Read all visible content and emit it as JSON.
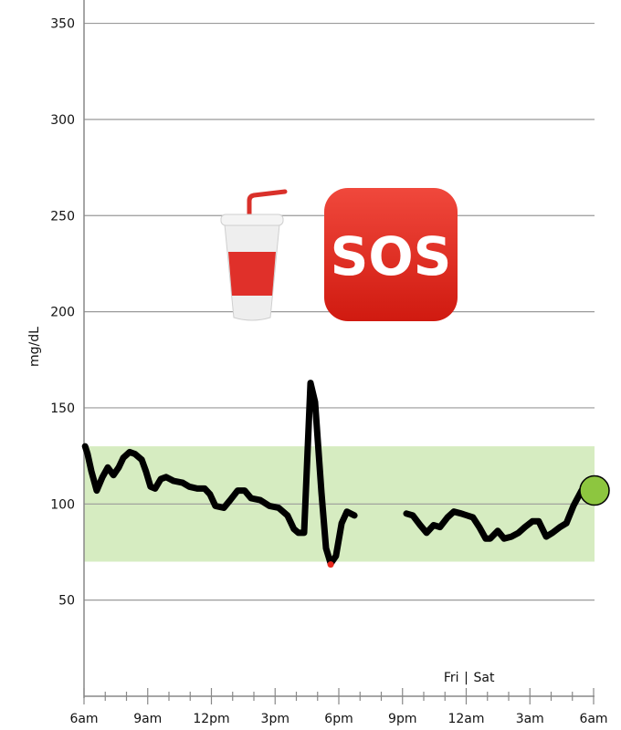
{
  "chart_data": {
    "type": "line",
    "title": "",
    "xlabel": "",
    "ylabel": "mg/dL",
    "ylim": [
      0,
      360
    ],
    "yticks": [
      50,
      100,
      150,
      200,
      250,
      300,
      350
    ],
    "xlim": [
      "Fri 06:00",
      "Sat 06:00"
    ],
    "xtick_labels": [
      "6am",
      "9am",
      "12pm",
      "3pm",
      "6pm",
      "9pm",
      "12am",
      "3am",
      "6am"
    ],
    "day_divider": {
      "label_left": "Fri",
      "separator": "|",
      "label_right": "Sat",
      "at": "Sat 00:00"
    },
    "grid": "horizontal",
    "target_range": {
      "low": 70,
      "high": 130,
      "color": "#d6ecc1"
    },
    "line_color": "#000000",
    "low_marker_color": "#e8281e",
    "current_marker_color": "#8dc63f",
    "annotations": [
      {
        "icon": "cup-with-straw-emoji"
      },
      {
        "icon": "sos-button-emoji",
        "text": "SOS",
        "color": "#e2231a"
      }
    ],
    "segments": [
      [
        [
          "Fri 06:03",
          130
        ],
        [
          "Fri 06:10",
          126
        ],
        [
          "Fri 06:21",
          117
        ],
        [
          "Fri 06:36",
          107
        ],
        [
          "Fri 06:52",
          114
        ],
        [
          "Fri 07:07",
          119
        ],
        [
          "Fri 07:23",
          115
        ],
        [
          "Fri 07:38",
          119
        ],
        [
          "Fri 07:51",
          124
        ],
        [
          "Fri 08:09",
          127
        ],
        [
          "Fri 08:24",
          126
        ],
        [
          "Fri 08:43",
          123
        ],
        [
          "Fri 08:55",
          117
        ],
        [
          "Fri 09:08",
          109
        ],
        [
          "Fri 09:21",
          108
        ],
        [
          "Fri 09:37",
          113
        ],
        [
          "Fri 09:52",
          114
        ],
        [
          "Fri 10:13",
          112
        ],
        [
          "Fri 10:39",
          111
        ],
        [
          "Fri 10:57",
          109
        ],
        [
          "Fri 11:20",
          108
        ],
        [
          "Fri 11:41",
          108
        ],
        [
          "Fri 11:56",
          105
        ],
        [
          "Fri 12:11",
          99
        ],
        [
          "Fri 12:35",
          98
        ],
        [
          "Fri 12:53",
          102
        ],
        [
          "Fri 13:14",
          107
        ],
        [
          "Fri 13:34",
          107
        ],
        [
          "Fri 13:52",
          103
        ],
        [
          "Fri 14:18",
          102
        ],
        [
          "Fri 14:44",
          99
        ],
        [
          "Fri 15:10",
          98
        ],
        [
          "Fri 15:35",
          94
        ],
        [
          "Fri 15:53",
          87
        ],
        [
          "Fri 16:06",
          85
        ],
        [
          "Fri 16:22",
          85
        ],
        [
          "Fri 16:40",
          163
        ],
        [
          "Fri 16:53",
          153
        ],
        [
          "Fri 17:11",
          106
        ],
        [
          "Fri 17:24",
          77
        ],
        [
          "Fri 17:37",
          69
        ],
        [
          "Fri 17:52",
          73
        ],
        [
          "Fri 18:08",
          90
        ],
        [
          "Fri 18:23",
          96
        ],
        [
          "Fri 18:44",
          94
        ]
      ],
      [
        [
          "Fri 21:11",
          95
        ],
        [
          "Fri 21:29",
          94
        ],
        [
          "Fri 21:50",
          89
        ],
        [
          "Fri 22:08",
          85
        ],
        [
          "Fri 22:28",
          89
        ],
        [
          "Fri 22:46",
          88
        ],
        [
          "Fri 23:07",
          93
        ],
        [
          "Fri 23:25",
          96
        ],
        [
          "Fri 23:46",
          95
        ],
        [
          "Sat 00:19",
          93
        ],
        [
          "Sat 00:37",
          88
        ],
        [
          "Sat 00:55",
          82
        ],
        [
          "Sat 01:08",
          82
        ],
        [
          "Sat 01:29",
          86
        ],
        [
          "Sat 01:47",
          82
        ],
        [
          "Sat 02:08",
          83
        ],
        [
          "Sat 02:28",
          85
        ],
        [
          "Sat 02:46",
          88
        ],
        [
          "Sat 03:07",
          91
        ],
        [
          "Sat 03:25",
          91
        ],
        [
          "Sat 03:46",
          83
        ],
        [
          "Sat 04:04",
          85
        ],
        [
          "Sat 04:25",
          88
        ],
        [
          "Sat 04:43",
          90
        ],
        [
          "Sat 05:03",
          99
        ],
        [
          "Sat 05:26",
          107
        ],
        [
          "Sat 06:00",
          107
        ]
      ]
    ],
    "low_point": [
      "Fri 17:37",
      69
    ],
    "current_point": [
      "Sat 06:00",
      107
    ]
  }
}
